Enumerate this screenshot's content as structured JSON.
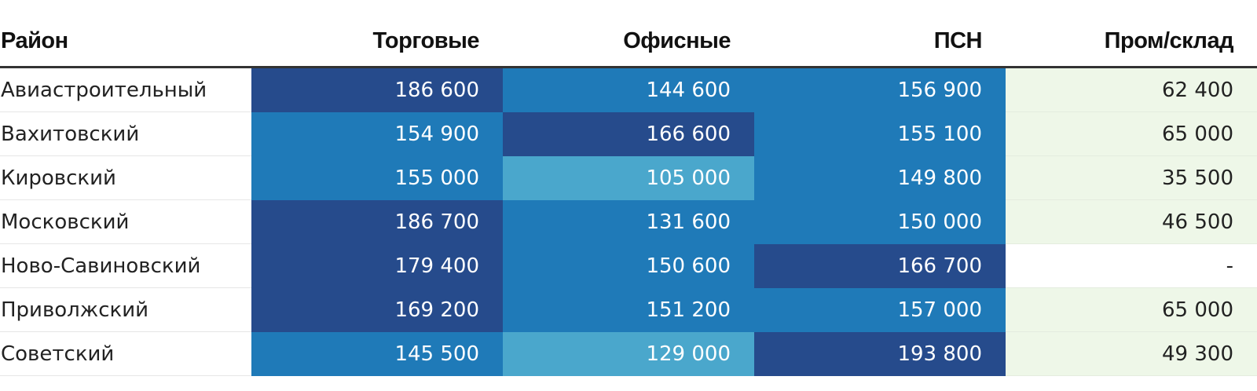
{
  "chart_data": {
    "type": "table",
    "columns": [
      "Район",
      "Торговые",
      "Офисные",
      "ПСН",
      "Пром/склад"
    ],
    "rows": [
      {
        "name": "Авиастроительный",
        "values": [
          "186 600",
          "144 600",
          "156 900",
          "62 400"
        ]
      },
      {
        "name": "Вахитовский",
        "values": [
          "154 900",
          "166 600",
          "155 100",
          "65 000"
        ]
      },
      {
        "name": "Кировский",
        "values": [
          "155 000",
          "105 000",
          "149 800",
          "35 500"
        ]
      },
      {
        "name": "Московский",
        "values": [
          "186 700",
          "131 600",
          "150 000",
          "46 500"
        ]
      },
      {
        "name": "Ново-Савиновский",
        "values": [
          "179 400",
          "150 600",
          "166 700",
          "-"
        ]
      },
      {
        "name": "Приволжский",
        "values": [
          "169 200",
          "151 200",
          "157 000",
          "65 000"
        ]
      },
      {
        "name": "Советский",
        "values": [
          "145 500",
          "129 000",
          "193 800",
          "49 300"
        ]
      }
    ]
  },
  "colors": {
    "dark": "#264b8c",
    "mid": "#1f7ab8",
    "light": "#4aa7cc",
    "pale": "#eef7e8",
    "empty": "#ffffff"
  },
  "cell_shades": [
    [
      "dark",
      "mid",
      "mid",
      "pale"
    ],
    [
      "mid",
      "dark",
      "mid",
      "pale"
    ],
    [
      "mid",
      "light",
      "mid",
      "pale"
    ],
    [
      "dark",
      "mid",
      "mid",
      "pale"
    ],
    [
      "dark",
      "mid",
      "dark",
      "empty"
    ],
    [
      "dark",
      "mid",
      "mid",
      "pale"
    ],
    [
      "mid",
      "light",
      "dark",
      "pale"
    ]
  ]
}
